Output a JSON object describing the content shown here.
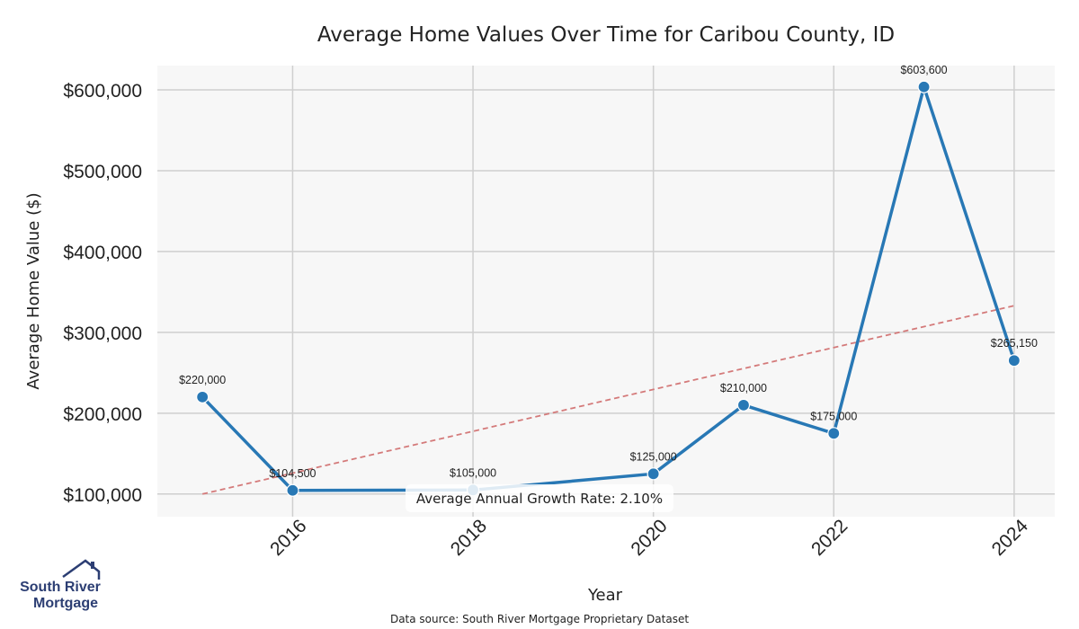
{
  "chart_data": {
    "type": "line",
    "title": "Average Home Values Over Time for Caribou County, ID",
    "xlabel": "Year",
    "ylabel": "Average Home Value ($)",
    "x": [
      2015,
      2016,
      2018,
      2020,
      2021,
      2022,
      2023,
      2024
    ],
    "series": [
      {
        "values": [
          220000,
          104500,
          105000,
          125000,
          210000,
          175000,
          603600,
          265150
        ],
        "labels": [
          "$220,000",
          "$104,500",
          "$105,000",
          "$125,000",
          "$210,000",
          "$175,000",
          "$603,600",
          "$265,150"
        ],
        "color": "#2878b5"
      }
    ],
    "trendline": {
      "start": [
        2015,
        100000
      ],
      "end": [
        2024,
        333000
      ],
      "color": "#d47a7a"
    },
    "xlim": [
      2014.5,
      2024.45
    ],
    "ylim": [
      72000,
      630000
    ],
    "xticks": [
      2016,
      2018,
      2020,
      2022,
      2024
    ],
    "xtick_labels": [
      "2016",
      "2018",
      "2020",
      "2022",
      "2024"
    ],
    "yticks": [
      100000,
      200000,
      300000,
      400000,
      500000,
      600000
    ],
    "ytick_labels": [
      "$100,000",
      "$200,000",
      "$300,000",
      "$400,000",
      "$500,000",
      "$600,000"
    ],
    "grid": true,
    "annotation": "Average Annual Growth Rate: 2.10%"
  },
  "source_note": "Data source: South River Mortgage Proprietary Dataset",
  "logo": {
    "line1": "South River",
    "line2": "Mortgage",
    "color": "#2c3e73"
  }
}
